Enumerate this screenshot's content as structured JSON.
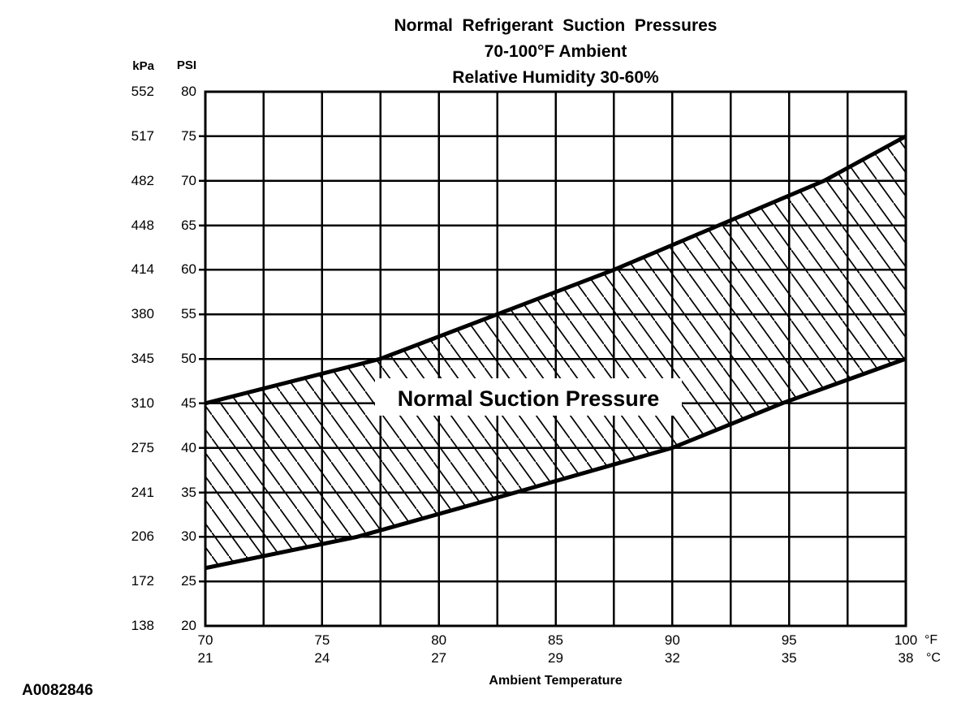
{
  "figure": {
    "id_label": "A0082846"
  },
  "title": {
    "line1": "Normal  Refrigerant  Suction  Pressures",
    "line2": "70-100°F Ambient",
    "line3": "Relative Humidity 30-60%"
  },
  "chart_data": {
    "type": "area",
    "title": "Normal Refrigerant Suction Pressures",
    "subtitle": [
      "70-100°F Ambient",
      "Relative Humidity 30-60%"
    ],
    "band_label": "Normal Suction Pressure",
    "x_axis": {
      "label": "Ambient Temperature",
      "units": [
        "°F",
        "°C"
      ],
      "ticks_f": [
        70,
        75,
        80,
        85,
        90,
        95,
        100
      ],
      "ticks_c": [
        21,
        24,
        27,
        29,
        32,
        35,
        38
      ],
      "range_f": [
        70,
        100
      ],
      "grid_step_f": 2.5
    },
    "y_axis": {
      "units": [
        "kPa",
        "PSI"
      ],
      "ticks_kpa": [
        552,
        517,
        482,
        448,
        414,
        380,
        345,
        310,
        275,
        241,
        206,
        172,
        138
      ],
      "ticks_psi": [
        80,
        75,
        70,
        65,
        60,
        55,
        50,
        45,
        40,
        35,
        30,
        25,
        20
      ],
      "range_psi": [
        20,
        80
      ],
      "grid_step_psi": 5
    },
    "series": [
      {
        "name": "upper-limit",
        "points_f_psi": [
          [
            70,
            45
          ],
          [
            77.5,
            50
          ],
          [
            82.5,
            55
          ],
          [
            87.5,
            60
          ],
          [
            92,
            65
          ],
          [
            96.5,
            70
          ],
          [
            100,
            75
          ]
        ]
      },
      {
        "name": "lower-limit",
        "points_f_psi": [
          [
            70,
            26.5
          ],
          [
            76.5,
            30
          ],
          [
            83.3,
            35
          ],
          [
            90,
            40
          ],
          [
            94.7,
            45
          ],
          [
            100,
            50
          ]
        ]
      }
    ],
    "band_fill": "diagonal-hatch",
    "grid": true,
    "legend": "none",
    "colors": {
      "ink": "#000000",
      "background": "#ffffff"
    }
  }
}
